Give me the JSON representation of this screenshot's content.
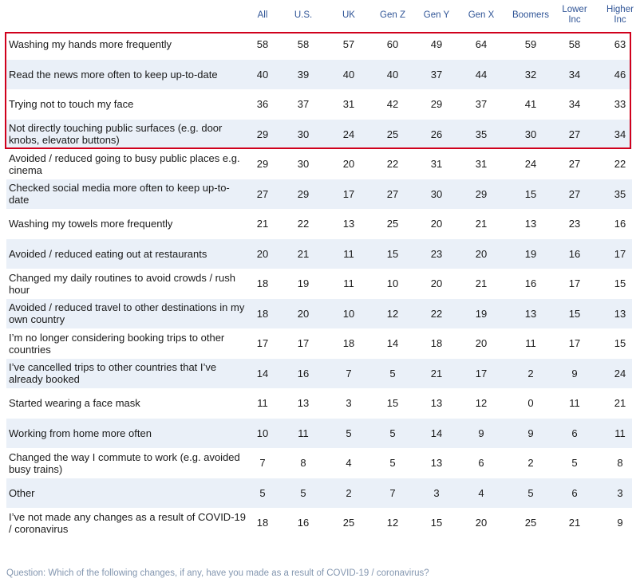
{
  "chart_data": {
    "type": "table",
    "columns": [
      "All",
      "U.S.",
      "UK",
      "Gen Z",
      "Gen Y",
      "Gen X",
      "Boomers",
      "Lower Inc",
      "Higher Inc"
    ],
    "column_labels": [
      [
        "All"
      ],
      [
        "U.S."
      ],
      [
        "UK"
      ],
      [
        "Gen Z"
      ],
      [
        "Gen Y"
      ],
      [
        "Gen X"
      ],
      [
        "Boomers"
      ],
      [
        "Lower",
        "Inc"
      ],
      [
        "Higher",
        "Inc"
      ]
    ],
    "rows": [
      {
        "label": "Washing my hands more frequently",
        "values": [
          58,
          58,
          57,
          60,
          49,
          64,
          59,
          58,
          63
        ]
      },
      {
        "label": "Read the news more often to keep up-to-date",
        "values": [
          40,
          39,
          40,
          40,
          37,
          44,
          32,
          34,
          46
        ]
      },
      {
        "label": "Trying not to touch my face",
        "values": [
          36,
          37,
          31,
          42,
          29,
          37,
          41,
          34,
          33
        ]
      },
      {
        "label": "Not directly touching public surfaces (e.g. door knobs, elevator buttons)",
        "values": [
          29,
          30,
          24,
          25,
          26,
          35,
          30,
          27,
          34
        ]
      },
      {
        "label": "Avoided / reduced going to busy public places e.g. cinema",
        "values": [
          29,
          30,
          20,
          22,
          31,
          31,
          24,
          27,
          22
        ]
      },
      {
        "label": "Checked social media more often to keep up-to-date",
        "values": [
          27,
          29,
          17,
          27,
          30,
          29,
          15,
          27,
          35
        ]
      },
      {
        "label": "Washing my towels more frequently",
        "values": [
          21,
          22,
          13,
          25,
          20,
          21,
          13,
          23,
          16
        ]
      },
      {
        "label": "Avoided / reduced eating out at restaurants",
        "values": [
          20,
          21,
          11,
          15,
          23,
          20,
          19,
          16,
          17
        ]
      },
      {
        "label": "Changed my daily routines to avoid crowds / rush hour",
        "values": [
          18,
          19,
          11,
          10,
          20,
          21,
          16,
          17,
          15
        ]
      },
      {
        "label": "Avoided / reduced travel to other destinations in my own country",
        "values": [
          18,
          20,
          10,
          12,
          22,
          19,
          13,
          15,
          13
        ]
      },
      {
        "label": "I’m no longer considering booking trips to other countries",
        "values": [
          17,
          17,
          18,
          14,
          18,
          20,
          11,
          17,
          15
        ]
      },
      {
        "label": "I’ve cancelled trips to other countries that I’ve already booked",
        "values": [
          14,
          16,
          7,
          5,
          21,
          17,
          2,
          9,
          24
        ]
      },
      {
        "label": "Started wearing a face mask",
        "values": [
          11,
          13,
          3,
          15,
          13,
          12,
          0,
          11,
          21
        ]
      },
      {
        "label": "Working from home more often",
        "values": [
          10,
          11,
          5,
          5,
          14,
          9,
          9,
          6,
          11
        ]
      },
      {
        "label": "Changed the way I commute to work (e.g. avoided busy trains)",
        "values": [
          7,
          8,
          4,
          5,
          13,
          6,
          2,
          5,
          8
        ]
      },
      {
        "label": "Other",
        "values": [
          5,
          5,
          2,
          7,
          3,
          4,
          5,
          6,
          3
        ]
      },
      {
        "label": "I’ve not made any changes as a result of COVID-19 / coronavirus",
        "values": [
          18,
          16,
          25,
          12,
          15,
          20,
          25,
          21,
          9
        ]
      }
    ],
    "highlighted_rows": [
      0,
      1,
      2,
      3
    ]
  },
  "footer": "Question: Which of the following changes, if any, have you made as a result of COVID-19 / coronavirus?",
  "colors": {
    "header": "#2f5496",
    "row_shade": "#eaf0f8",
    "highlight": "#d0001c",
    "footer": "#8497b0"
  }
}
